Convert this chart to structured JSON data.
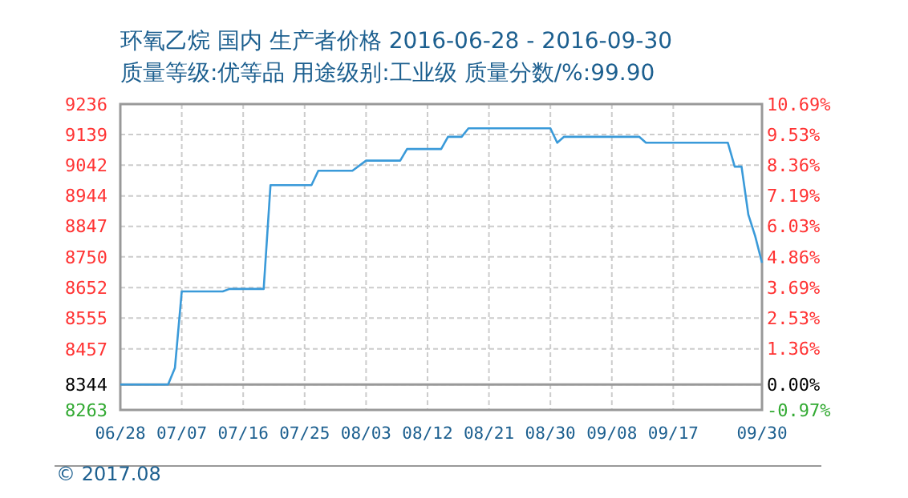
{
  "chart_data": {
    "type": "line",
    "title": "环氧乙烷 国内 生产者价格 2016-06-28 - 2016-09-30",
    "subtitle": "质量等级:优等品 用途级别:工业级 质量分数/%:99.90",
    "annotations": [
      "© 2017.08"
    ],
    "series": [
      {
        "color": "#3a9ad9",
        "x": [
          "2016-06-28",
          "2016-07-05",
          "2016-07-06",
          "2016-07-07",
          "2016-07-13",
          "2016-07-14",
          "2016-07-19",
          "2016-07-20",
          "2016-07-26",
          "2016-07-27",
          "2016-08-01",
          "2016-08-03",
          "2016-08-08",
          "2016-08-09",
          "2016-08-14",
          "2016-08-15",
          "2016-08-17",
          "2016-08-18",
          "2016-08-30",
          "2016-08-31",
          "2016-09-01",
          "2016-09-12",
          "2016-09-13",
          "2016-09-25",
          "2016-09-26",
          "2016-09-27",
          "2016-09-28",
          "2016-09-29",
          "2016-09-30"
        ],
        "values": [
          8344,
          8344,
          8397,
          8640,
          8640,
          8648,
          8648,
          8978,
          8978,
          9024,
          9024,
          9056,
          9056,
          9093,
          9093,
          9132,
          9132,
          9159,
          9159,
          9113,
          9132,
          9132,
          9113,
          9113,
          9037,
          9037,
          8884,
          8816,
          8731
        ]
      }
    ],
    "xlim": [
      "2016-06-28",
      "2016-09-30"
    ],
    "xticks": [
      {
        "value": "2016-06-28",
        "label": "06/28"
      },
      {
        "value": "2016-07-07",
        "label": "07/07"
      },
      {
        "value": "2016-07-16",
        "label": "07/16"
      },
      {
        "value": "2016-07-25",
        "label": "07/25"
      },
      {
        "value": "2016-08-03",
        "label": "08/03"
      },
      {
        "value": "2016-08-12",
        "label": "08/12"
      },
      {
        "value": "2016-08-21",
        "label": "08/21"
      },
      {
        "value": "2016-08-30",
        "label": "08/30"
      },
      {
        "value": "2016-09-08",
        "label": "09/08"
      },
      {
        "value": "2016-09-17",
        "label": "09/17"
      },
      {
        "value": "2016-09-30",
        "label": "09/30"
      }
    ],
    "ylim": [
      8263,
      9236
    ],
    "yticks": [
      8263,
      8344,
      8457,
      8555,
      8652,
      8750,
      8847,
      8944,
      9042,
      9139,
      9236
    ],
    "y2lim": [
      -0.97,
      10.69
    ],
    "y2ticks": [
      {
        "value": -0.97,
        "label": "-0.97%"
      },
      {
        "value": 0,
        "label": "0.00%"
      },
      {
        "value": 1.36,
        "label": "1.36%"
      },
      {
        "value": 2.53,
        "label": "2.53%"
      },
      {
        "value": 3.69,
        "label": "3.69%"
      },
      {
        "value": 4.86,
        "label": "4.86%"
      },
      {
        "value": 6.03,
        "label": "6.03%"
      },
      {
        "value": 7.19,
        "label": "7.19%"
      },
      {
        "value": 8.36,
        "label": "8.36%"
      },
      {
        "value": 9.53,
        "label": "9.53%"
      },
      {
        "value": 10.69,
        "label": "10.69%"
      }
    ],
    "ref_lines": [
      {
        "axis": "y",
        "value": 8344,
        "color": "#999999"
      }
    ],
    "grid": true,
    "marker": "none",
    "line_style": "solid"
  }
}
